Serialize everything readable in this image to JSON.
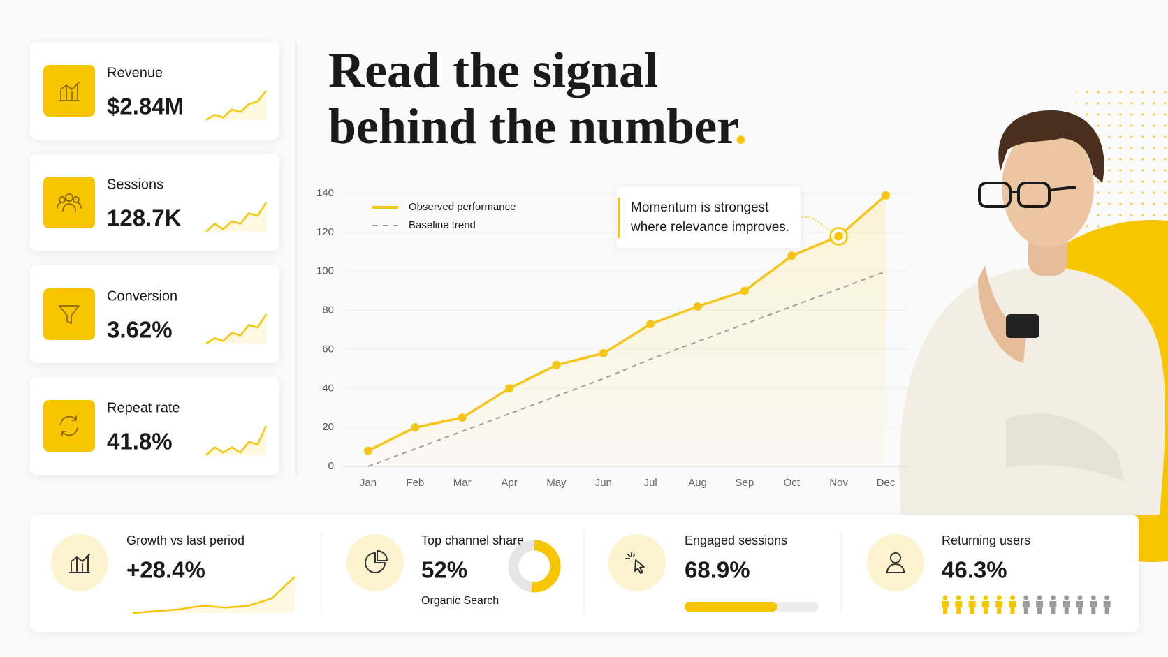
{
  "kpi_cards": [
    {
      "label": "Revenue",
      "value": "$2.84M",
      "trend": [
        3,
        5,
        4,
        7,
        6,
        9,
        10,
        14
      ]
    },
    {
      "label": "Sessions",
      "value": "128.7K",
      "trend": [
        3,
        6,
        4,
        7,
        6,
        10,
        9,
        14
      ]
    },
    {
      "label": "Conversion",
      "value": "3.62%",
      "trend": [
        3,
        5,
        4,
        7,
        6,
        10,
        9,
        14
      ]
    },
    {
      "label": "Repeat rate",
      "value": "41.8%",
      "trend": [
        3,
        6,
        4,
        6,
        4,
        8,
        7,
        14
      ]
    }
  ],
  "headline": {
    "line1": "Read the signal",
    "line2": "behind the number",
    "accent": "."
  },
  "chart_data": {
    "type": "line",
    "categories": [
      "Jan",
      "Feb",
      "Mar",
      "Apr",
      "May",
      "Jun",
      "Jul",
      "Aug",
      "Sep",
      "Oct",
      "Nov",
      "Dec"
    ],
    "series": [
      {
        "name": "Observed performance",
        "color": "#f5c518",
        "values": [
          8,
          20,
          25,
          40,
          52,
          58,
          73,
          82,
          90,
          108,
          118,
          139
        ]
      },
      {
        "name": "Baseline trend",
        "color": "#9e9e9e",
        "dashed": true,
        "values": [
          0,
          9,
          18,
          27,
          36,
          45,
          55,
          64,
          73,
          82,
          91,
          100
        ]
      }
    ],
    "ylim": [
      0,
      140
    ],
    "yticks": [
      0,
      20,
      40,
      60,
      80,
      100,
      120,
      140
    ],
    "grid": true,
    "legend": "top-left",
    "annotation": {
      "lines": [
        "Momentum is strongest",
        "where relevance improves."
      ],
      "category": "Nov"
    }
  },
  "bottom_stats": [
    {
      "label": "Growth vs last period",
      "value": "+28.4%",
      "trend": [
        2,
        2.5,
        3,
        4,
        3.5,
        4,
        6,
        12
      ]
    },
    {
      "label": "Top channel share",
      "value": "52%",
      "share": 52,
      "sublabel": "Organic Search"
    },
    {
      "label": "Engaged sessions",
      "value": "68.9%",
      "share": 68.9
    },
    {
      "label": "Returning users",
      "value": "46.3%",
      "share": 46.3
    }
  ]
}
